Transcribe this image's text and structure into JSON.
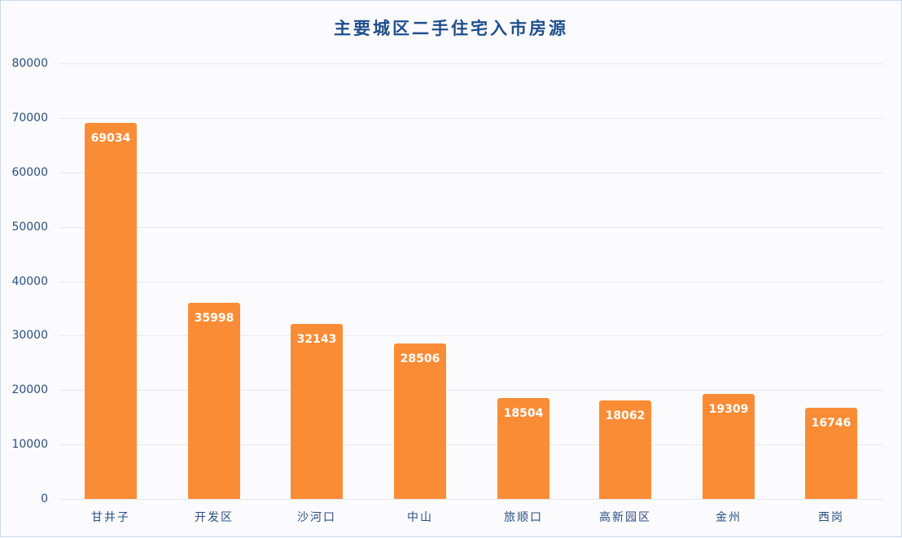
{
  "chart_data": {
    "type": "bar",
    "title": "主要城区二手住宅入市房源",
    "xlabel": "",
    "ylabel": "",
    "categories": [
      "甘井子",
      "开发区",
      "沙河口",
      "中山",
      "旅顺口",
      "高新园区",
      "金州",
      "西岗"
    ],
    "values": [
      69034,
      35998,
      32143,
      28506,
      18504,
      18062,
      19309,
      16746
    ],
    "data_labels": [
      "69034",
      "35998",
      "32143",
      "28506",
      "18504",
      "18062",
      "19309",
      "16746"
    ],
    "ylim": [
      0,
      80000
    ],
    "yticks": [
      0,
      10000,
      20000,
      30000,
      40000,
      50000,
      60000,
      70000,
      80000
    ],
    "ytick_labels": [
      "0",
      "10000",
      "20000",
      "30000",
      "40000",
      "50000",
      "60000",
      "70000",
      "80000"
    ],
    "grid": true,
    "legend": null,
    "bar_color": "#fb8c36"
  },
  "colors": {
    "title": "#1f4e8c",
    "axis_text": "#2a4f80",
    "bar": "#fb8c36",
    "gridline": "#e6e8ee",
    "background": "#fbfbfd"
  }
}
